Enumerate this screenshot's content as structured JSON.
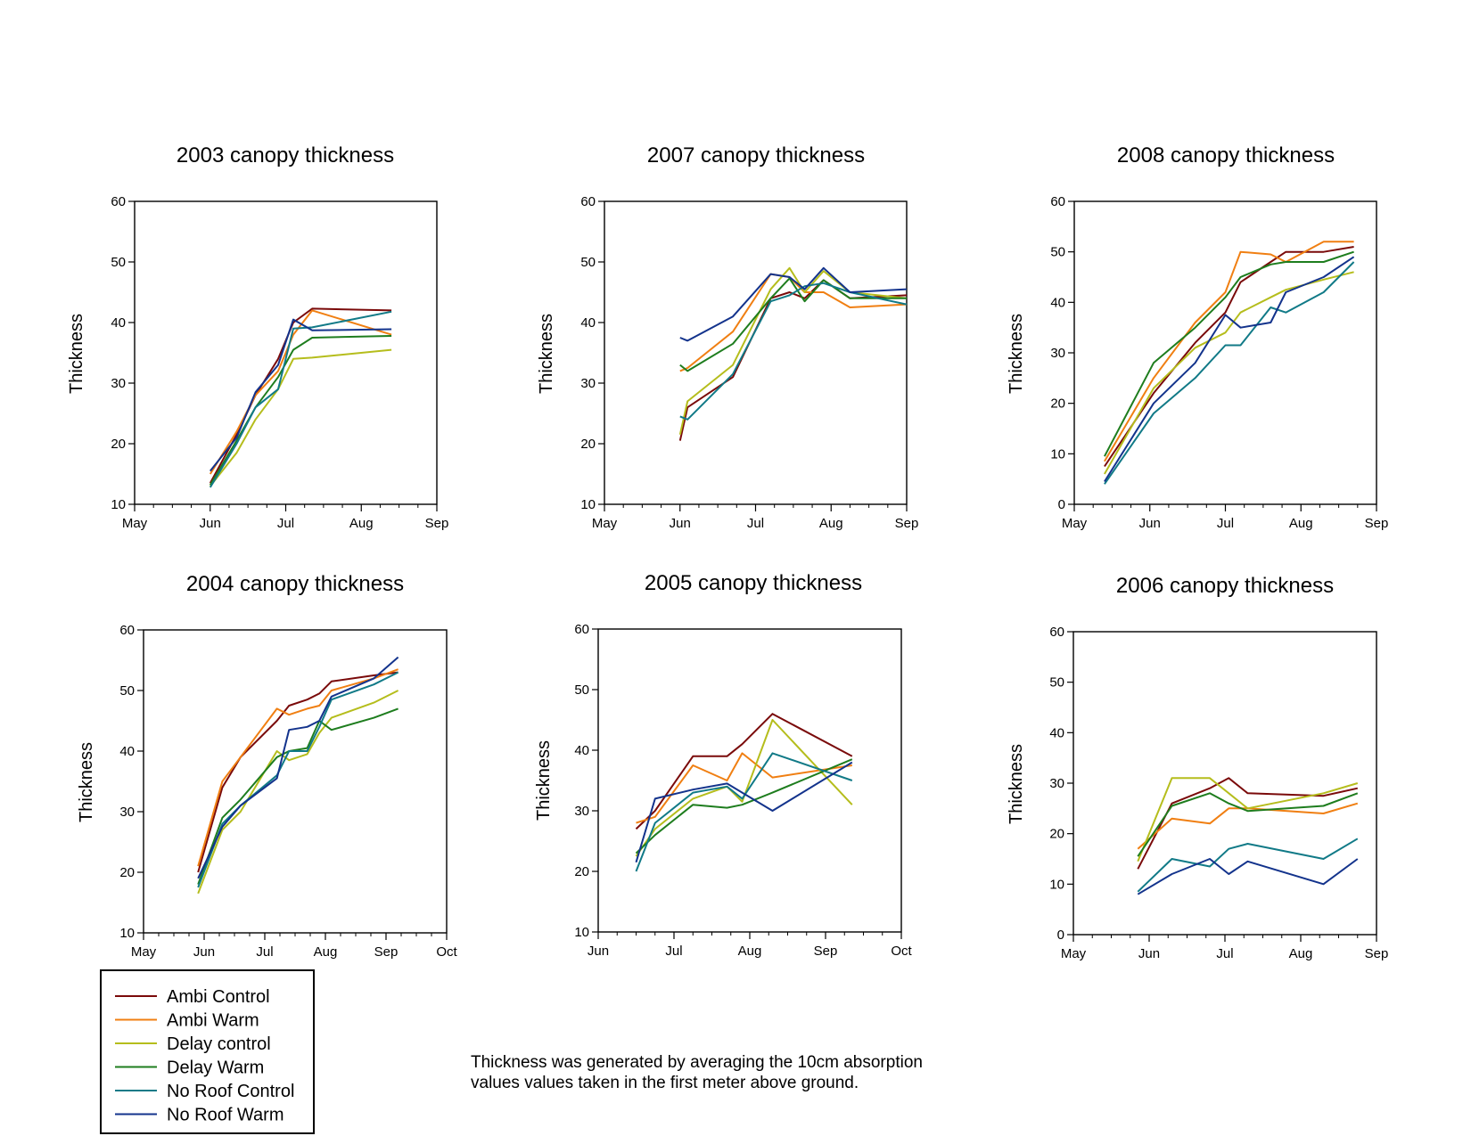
{
  "note": {
    "lines": [
      "Thickness was generated by averaging the 10cm absorption",
      "values values taken in the first meter above ground."
    ]
  },
  "legend": [
    {
      "name": "Ambi Control",
      "color": "#7a0a0a"
    },
    {
      "name": "Ambi Warm",
      "color": "#f07f12"
    },
    {
      "name": "Delay control",
      "color": "#b5bd1c"
    },
    {
      "name": "Delay Warm",
      "color": "#1e7d1e"
    },
    {
      "name": "No Roof Control",
      "color": "#117a87"
    },
    {
      "name": "No Roof Warm",
      "color": "#13338c"
    }
  ],
  "chart_data": [
    {
      "type": "line",
      "title": "2003 canopy thickness",
      "ylabel": "Thickness",
      "xlabel": "",
      "ylim": [
        10,
        60
      ],
      "yticks": [
        10,
        20,
        30,
        40,
        50,
        60
      ],
      "xlim": [
        0,
        4
      ],
      "xtick_labels": [
        "May",
        "Jun",
        "Jul",
        "Aug",
        "Sep"
      ],
      "series": [
        {
          "name": "Ambi Control",
          "x": [
            1.0,
            1.35,
            1.6,
            1.9,
            2.1,
            2.35,
            3.4
          ],
          "y": [
            13.5,
            21.5,
            28,
            34,
            40,
            42.3,
            42
          ]
        },
        {
          "name": "Ambi Warm",
          "x": [
            1.0,
            1.35,
            1.6,
            1.9,
            2.1,
            2.35,
            3.4
          ],
          "y": [
            15,
            22,
            28,
            32,
            38,
            42,
            38
          ]
        },
        {
          "name": "Delay control",
          "x": [
            1.0,
            1.35,
            1.6,
            1.9,
            2.1,
            2.35,
            3.4
          ],
          "y": [
            13,
            18.5,
            24,
            29,
            34,
            34.2,
            35.5
          ]
        },
        {
          "name": "Delay Warm",
          "x": [
            1.0,
            1.35,
            1.6,
            1.9,
            2.1,
            2.35,
            3.4
          ],
          "y": [
            13.2,
            20.5,
            26,
            31,
            35.5,
            37.5,
            37.8
          ]
        },
        {
          "name": "No Roof Control",
          "x": [
            1.0,
            1.35,
            1.6,
            1.9,
            2.1,
            2.35,
            3.4
          ],
          "y": [
            12.8,
            20,
            26,
            29,
            39,
            39.2,
            41.8
          ]
        },
        {
          "name": "No Roof Warm",
          "x": [
            1.0,
            1.35,
            1.6,
            1.9,
            2.1,
            2.35,
            3.4
          ],
          "y": [
            15.5,
            21,
            28.5,
            33,
            40.5,
            38.7,
            38.9
          ]
        }
      ]
    },
    {
      "type": "line",
      "title": "2007 canopy thickness",
      "ylabel": "Thickness",
      "xlabel": "",
      "ylim": [
        10,
        60
      ],
      "yticks": [
        10,
        20,
        30,
        40,
        50,
        60
      ],
      "xlim": [
        0,
        4
      ],
      "xtick_labels": [
        "May",
        "Jun",
        "Jul",
        "Aug",
        "Sep"
      ],
      "series": [
        {
          "name": "Ambi Control",
          "x": [
            1.0,
            1.1,
            1.7,
            2.2,
            2.45,
            2.65,
            2.9,
            3.25,
            4.0
          ],
          "y": [
            20.5,
            26,
            31,
            44,
            45,
            44,
            47,
            44,
            44.5
          ]
        },
        {
          "name": "Ambi Warm",
          "x": [
            1.0,
            1.1,
            1.7,
            2.2,
            2.45,
            2.65,
            2.9,
            3.25,
            4.0
          ],
          "y": [
            32,
            32.5,
            38.5,
            48,
            47.5,
            45,
            45,
            42.5,
            43
          ]
        },
        {
          "name": "Delay control",
          "x": [
            1.0,
            1.1,
            1.7,
            2.2,
            2.45,
            2.65,
            2.9,
            3.25,
            4.0
          ],
          "y": [
            21.5,
            27,
            33,
            45.5,
            49,
            45,
            48.5,
            45,
            44
          ]
        },
        {
          "name": "Delay Warm",
          "x": [
            1.0,
            1.1,
            1.7,
            2.2,
            2.45,
            2.65,
            2.9,
            3.25,
            4.0
          ],
          "y": [
            33,
            32,
            36.5,
            44,
            47.3,
            43.5,
            47,
            44,
            44
          ]
        },
        {
          "name": "No Roof Control",
          "x": [
            1.0,
            1.1,
            1.7,
            2.2,
            2.45,
            2.65,
            2.9,
            3.25,
            4.0
          ],
          "y": [
            24.5,
            24,
            31.5,
            43.5,
            44.5,
            46,
            46.5,
            45,
            43
          ]
        },
        {
          "name": "No Roof Warm",
          "x": [
            1.0,
            1.1,
            1.7,
            2.2,
            2.45,
            2.65,
            2.9,
            3.25,
            4.0
          ],
          "y": [
            37.5,
            37,
            41,
            48,
            47.5,
            45.5,
            49,
            45,
            45.5
          ]
        }
      ]
    },
    {
      "type": "line",
      "title": "2008 canopy thickness",
      "ylabel": "Thickness",
      "xlabel": "",
      "ylim": [
        0,
        60
      ],
      "yticks": [
        0,
        10,
        20,
        30,
        40,
        50,
        60
      ],
      "xlim": [
        0,
        4
      ],
      "xtick_labels": [
        "May",
        "Jun",
        "Jul",
        "Aug",
        "Sep"
      ],
      "series": [
        {
          "name": "Ambi Control",
          "x": [
            0.4,
            1.05,
            1.6,
            2.0,
            2.2,
            2.6,
            2.8,
            3.3,
            3.7
          ],
          "y": [
            7.5,
            22,
            32,
            38,
            44,
            48,
            50,
            50,
            51
          ]
        },
        {
          "name": "Ambi Warm",
          "x": [
            0.4,
            1.05,
            1.6,
            2.0,
            2.2,
            2.6,
            2.8,
            3.3,
            3.7
          ],
          "y": [
            8.5,
            25,
            36,
            42,
            50,
            49.5,
            48,
            52,
            52
          ]
        },
        {
          "name": "Delay control",
          "x": [
            0.4,
            1.05,
            1.6,
            2.0,
            2.2,
            2.6,
            2.8,
            3.3,
            3.7
          ],
          "y": [
            6,
            23,
            31,
            34,
            38,
            41,
            42.5,
            44.5,
            46
          ]
        },
        {
          "name": "Delay Warm",
          "x": [
            0.4,
            1.05,
            1.6,
            2.0,
            2.2,
            2.6,
            2.8,
            3.3,
            3.7
          ],
          "y": [
            9.5,
            28,
            35,
            41,
            45,
            47.5,
            48,
            48,
            50
          ]
        },
        {
          "name": "No Roof Control",
          "x": [
            0.4,
            1.05,
            1.6,
            2.0,
            2.2,
            2.6,
            2.8,
            3.3,
            3.7
          ],
          "y": [
            4,
            18,
            25,
            31.5,
            31.5,
            39,
            38,
            42,
            48
          ]
        },
        {
          "name": "No Roof Warm",
          "x": [
            0.4,
            1.05,
            1.6,
            2.0,
            2.2,
            2.6,
            2.8,
            3.3,
            3.7
          ],
          "y": [
            4.5,
            20,
            28,
            37.5,
            35,
            36,
            42,
            45,
            49
          ]
        }
      ]
    },
    {
      "type": "line",
      "title": "2004 canopy thickness",
      "ylabel": "Thickness",
      "xlabel": "",
      "ylim": [
        10,
        60
      ],
      "yticks": [
        10,
        20,
        30,
        40,
        50,
        60
      ],
      "xlim": [
        0,
        5
      ],
      "xtick_labels": [
        "May",
        "Jun",
        "Jul",
        "Aug",
        "Sep",
        "Oct"
      ],
      "series": [
        {
          "name": "Ambi Control",
          "x": [
            0.9,
            1.3,
            1.6,
            2.2,
            2.4,
            2.7,
            2.9,
            3.1,
            3.8,
            4.2
          ],
          "y": [
            20,
            34,
            39,
            45,
            47.5,
            48.5,
            49.5,
            51.5,
            52.5,
            53
          ]
        },
        {
          "name": "Ambi Warm",
          "x": [
            0.9,
            1.3,
            1.6,
            2.2,
            2.4,
            2.7,
            2.9,
            3.1,
            3.8,
            4.2
          ],
          "y": [
            21,
            35,
            39,
            47,
            46,
            47,
            47.5,
            50,
            52,
            53.5
          ]
        },
        {
          "name": "Delay control",
          "x": [
            0.9,
            1.3,
            1.6,
            2.2,
            2.4,
            2.7,
            2.9,
            3.1,
            3.8,
            4.2
          ],
          "y": [
            16.5,
            27,
            30,
            40,
            38.5,
            39.5,
            43,
            45.5,
            48,
            50
          ]
        },
        {
          "name": "Delay Warm",
          "x": [
            0.9,
            1.3,
            1.6,
            2.2,
            2.4,
            2.7,
            2.9,
            3.1,
            3.8,
            4.2
          ],
          "y": [
            18,
            29,
            32,
            39,
            40,
            40.5,
            45,
            43.5,
            45.5,
            47
          ]
        },
        {
          "name": "No Roof Control",
          "x": [
            0.9,
            1.3,
            1.6,
            2.2,
            2.4,
            2.7,
            2.9,
            3.1,
            3.8,
            4.2
          ],
          "y": [
            17.5,
            28,
            31,
            36,
            40,
            40,
            44,
            48.5,
            51,
            53
          ]
        },
        {
          "name": "No Roof Warm",
          "x": [
            0.9,
            1.3,
            1.6,
            2.2,
            2.4,
            2.7,
            2.9,
            3.1,
            3.8,
            4.2
          ],
          "y": [
            19,
            27.5,
            31,
            35.5,
            43.5,
            44,
            45,
            49,
            52,
            55.5
          ]
        }
      ]
    },
    {
      "type": "line",
      "title": "2005 canopy thickness",
      "ylabel": "Thickness",
      "xlabel": "",
      "ylim": [
        10,
        60
      ],
      "yticks": [
        10,
        20,
        30,
        40,
        50,
        60
      ],
      "xlim": [
        0,
        4
      ],
      "xtick_labels": [
        "Jun",
        "Jul",
        "Aug",
        "Sep",
        "Oct"
      ],
      "series": [
        {
          "name": "Ambi Control",
          "x": [
            0.5,
            0.75,
            1.25,
            1.7,
            1.9,
            2.3,
            3.35
          ],
          "y": [
            27,
            30,
            39,
            39,
            41,
            46,
            39
          ]
        },
        {
          "name": "Ambi Warm",
          "x": [
            0.5,
            0.75,
            1.25,
            1.7,
            1.9,
            2.3,
            3.35
          ],
          "y": [
            28,
            29,
            37.5,
            35,
            39.5,
            35.5,
            37.5
          ]
        },
        {
          "name": "Delay control",
          "x": [
            0.5,
            0.75,
            1.25,
            1.7,
            1.9,
            2.3,
            3.35
          ],
          "y": [
            22.5,
            27,
            32,
            34,
            31.5,
            45,
            31
          ]
        },
        {
          "name": "Delay Warm",
          "x": [
            0.5,
            0.75,
            1.25,
            1.7,
            1.9,
            2.3,
            3.35
          ],
          "y": [
            23,
            26,
            31,
            30.5,
            31,
            33,
            38.5
          ]
        },
        {
          "name": "No Roof Control",
          "x": [
            0.5,
            0.75,
            1.25,
            1.7,
            1.9,
            2.3,
            3.35
          ],
          "y": [
            20,
            28,
            33,
            34,
            32,
            39.5,
            35
          ]
        },
        {
          "name": "No Roof Warm",
          "x": [
            0.5,
            0.75,
            1.25,
            1.7,
            1.9,
            2.3,
            3.35
          ],
          "y": [
            21.5,
            32,
            33.5,
            34.5,
            33,
            30,
            38
          ]
        }
      ]
    },
    {
      "type": "line",
      "title": "2006 canopy thickness",
      "ylabel": "Thickness",
      "xlabel": "",
      "ylim": [
        0,
        60
      ],
      "yticks": [
        0,
        10,
        20,
        30,
        40,
        50,
        60
      ],
      "xlim": [
        0,
        4
      ],
      "xtick_labels": [
        "May",
        "Jun",
        "Jul",
        "Aug",
        "Sep"
      ],
      "series": [
        {
          "name": "Ambi Control",
          "x": [
            0.85,
            1.3,
            1.8,
            2.05,
            2.3,
            3.3,
            3.75
          ],
          "y": [
            13,
            26,
            29,
            31,
            28,
            27.5,
            29
          ]
        },
        {
          "name": "Ambi Warm",
          "x": [
            0.85,
            1.3,
            1.8,
            2.05,
            2.3,
            3.3,
            3.75
          ],
          "y": [
            17,
            23,
            22,
            25,
            25,
            24,
            26
          ]
        },
        {
          "name": "Delay control",
          "x": [
            0.85,
            1.3,
            1.8,
            2.05,
            2.3,
            3.3,
            3.75
          ],
          "y": [
            14.5,
            31,
            31,
            28,
            25,
            28,
            30
          ]
        },
        {
          "name": "Delay Warm",
          "x": [
            0.85,
            1.3,
            1.8,
            2.05,
            2.3,
            3.3,
            3.75
          ],
          "y": [
            15.5,
            25.5,
            28,
            26,
            24.5,
            25.5,
            28
          ]
        },
        {
          "name": "No Roof Control",
          "x": [
            0.85,
            1.3,
            1.8,
            2.05,
            2.3,
            3.3,
            3.75
          ],
          "y": [
            8.5,
            15,
            13.5,
            17,
            18,
            15,
            19
          ]
        },
        {
          "name": "No Roof Warm",
          "x": [
            0.85,
            1.3,
            1.8,
            2.05,
            2.3,
            3.3,
            3.75
          ],
          "y": [
            8,
            12,
            15,
            12,
            14.5,
            10,
            15
          ]
        }
      ]
    }
  ]
}
